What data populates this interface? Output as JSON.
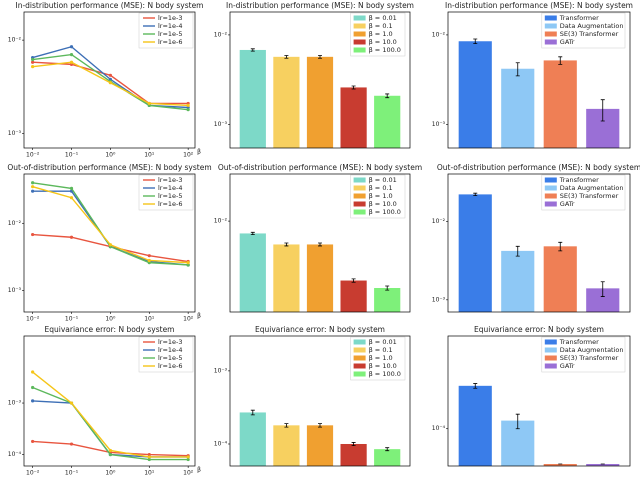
{
  "chart_data": [
    {
      "type": "line",
      "title": "In-distribution performance (MSE): N body system",
      "xlabel": "β",
      "log_x": true,
      "log_y": true,
      "legend": "upper right",
      "x": [
        0.01,
        0.1,
        1,
        10,
        100
      ],
      "xlim": [
        0.006,
        150
      ],
      "xticks": [
        {
          "value": 0.01,
          "label": "10⁻²"
        },
        {
          "value": 0.1,
          "label": "10⁻¹"
        },
        {
          "value": 1,
          "label": "10⁰"
        },
        {
          "value": 10,
          "label": "10¹"
        },
        {
          "value": 100,
          "label": "10²"
        }
      ],
      "ylim": [
        0.0007,
        0.02
      ],
      "yticks": [
        {
          "value": 0.01,
          "label": "10⁻²"
        },
        {
          "value": 0.001,
          "label": "10⁻³"
        }
      ],
      "series": [
        {
          "name": "lr=1e-3",
          "color": "#e8553f",
          "values": [
            0.0058,
            0.0055,
            0.0042,
            0.0021,
            0.0021
          ]
        },
        {
          "name": "lr=1e-4",
          "color": "#3d6fb6",
          "values": [
            0.0065,
            0.0085,
            0.0038,
            0.002,
            0.0019
          ]
        },
        {
          "name": "lr=1e-5",
          "color": "#5cb85c",
          "values": [
            0.0062,
            0.007,
            0.0036,
            0.002,
            0.0018
          ]
        },
        {
          "name": "lr=1e-6",
          "color": "#f5c518",
          "values": [
            0.0052,
            0.0058,
            0.0035,
            0.0021,
            0.002
          ]
        }
      ]
    },
    {
      "type": "bar",
      "title": "In-distribution performance (MSE): N body system",
      "log_y": true,
      "legend": "upper right",
      "categories": [
        "β = 0.01",
        "β = 0.1",
        "β = 1.0",
        "β = 10.0",
        "β = 100.0"
      ],
      "colors": [
        "#7dd9c8",
        "#f7d060",
        "#f0a030",
        "#c83c30",
        "#7ef07a"
      ],
      "values": [
        0.0068,
        0.0057,
        0.0057,
        0.0026,
        0.0021
      ],
      "errors": [
        0.0002,
        0.0002,
        0.0002,
        0.0001,
        0.0001
      ],
      "ylim": [
        0.00055,
        0.018
      ],
      "yticks": [
        {
          "value": 0.01,
          "label": "10⁻²"
        },
        {
          "value": 0.001,
          "label": "10⁻³"
        }
      ]
    },
    {
      "type": "bar",
      "title": "In-distribution performance (MSE): N body system",
      "log_y": true,
      "legend": "upper right",
      "categories": [
        "Transformer",
        "Data Augmentation",
        "SE(3) Transformer",
        "GATr"
      ],
      "colors": [
        "#3a7de8",
        "#8ec8f5",
        "#ef7f55",
        "#9a6fd6"
      ],
      "values": [
        0.0085,
        0.0042,
        0.0052,
        0.0015
      ],
      "errors": [
        0.0005,
        0.0007,
        0.0005,
        0.0004
      ],
      "ylim": [
        0.00055,
        0.018
      ],
      "yticks": [
        {
          "value": 0.01,
          "label": "10⁻²"
        },
        {
          "value": 0.001,
          "label": "10⁻³"
        }
      ]
    },
    {
      "type": "line",
      "title": "Out-of-distribution performance (MSE): N body system",
      "xlabel": "β",
      "log_x": true,
      "log_y": true,
      "legend": "upper right",
      "x": [
        0.01,
        0.1,
        1,
        10,
        100
      ],
      "xlim": [
        0.006,
        150
      ],
      "xticks": [
        {
          "value": 0.01,
          "label": "10⁻²"
        },
        {
          "value": 0.1,
          "label": "10⁻¹"
        },
        {
          "value": 1,
          "label": "10⁰"
        },
        {
          "value": 10,
          "label": "10¹"
        },
        {
          "value": 100,
          "label": "10²"
        }
      ],
      "ylim": [
        0.00048,
        0.054
      ],
      "yticks": [
        {
          "value": 0.01,
          "label": "10⁻²"
        },
        {
          "value": 0.001,
          "label": "10⁻³"
        }
      ],
      "series": [
        {
          "name": "lr=1e-3",
          "color": "#e8553f",
          "values": [
            0.0068,
            0.0062,
            0.0045,
            0.0033,
            0.0027
          ]
        },
        {
          "name": "lr=1e-4",
          "color": "#3d6fb6",
          "values": [
            0.03,
            0.03,
            0.0045,
            0.0027,
            0.0024
          ]
        },
        {
          "name": "lr=1e-5",
          "color": "#5cb85c",
          "values": [
            0.04,
            0.033,
            0.0045,
            0.0026,
            0.0024
          ]
        },
        {
          "name": "lr=1e-6",
          "color": "#f5c518",
          "values": [
            0.035,
            0.024,
            0.0048,
            0.0028,
            0.0026
          ]
        }
      ]
    },
    {
      "type": "bar",
      "title": "Out-of-distribution performance (MSE): N body system",
      "log_y": true,
      "legend": "upper right",
      "categories": [
        "β = 0.01",
        "β = 0.1",
        "β = 1.0",
        "β = 10.0",
        "β = 100.0"
      ],
      "colors": [
        "#7dd9c8",
        "#f7d060",
        "#f0a030",
        "#c83c30",
        "#7ef07a"
      ],
      "values": [
        0.0075,
        0.0058,
        0.0058,
        0.0025,
        0.0021
      ],
      "errors": [
        0.0002,
        0.0002,
        0.0002,
        0.0001,
        0.0001
      ],
      "ylim": [
        0.0012,
        0.03
      ],
      "yticks": [
        {
          "value": 0.01,
          "label": "10⁻²"
        }
      ]
    },
    {
      "type": "bar",
      "title": "Out-of-distribution performance (MSE): N body system",
      "log_y": true,
      "legend": "upper right",
      "categories": [
        "Transformer",
        "Data Augmentation",
        "SE(3) Transformer",
        "GATr"
      ],
      "colors": [
        "#3a7de8",
        "#8ec8f5",
        "#ef7f55",
        "#9a6fd6"
      ],
      "values": [
        0.022,
        0.0042,
        0.0048,
        0.0014
      ],
      "errors": [
        0.0008,
        0.0006,
        0.0006,
        0.0003
      ],
      "ylim": [
        0.0007,
        0.04
      ],
      "yticks": [
        {
          "value": 0.01,
          "label": "10⁻²"
        },
        {
          "value": 0.001,
          "label": "10⁻³"
        }
      ]
    },
    {
      "type": "line",
      "title": "Equivariance error: N body system",
      "xlabel": "β",
      "log_x": true,
      "log_y": true,
      "legend": "upper right",
      "x": [
        0.01,
        0.1,
        1,
        10,
        100
      ],
      "xlim": [
        0.006,
        150
      ],
      "xticks": [
        {
          "value": 0.01,
          "label": "10⁻²"
        },
        {
          "value": 0.1,
          "label": "10⁻¹"
        },
        {
          "value": 1,
          "label": "10⁰"
        },
        {
          "value": 10,
          "label": "10¹"
        },
        {
          "value": 100,
          "label": "10²"
        }
      ],
      "ylim": [
        6e-05,
        0.02
      ],
      "yticks": [
        {
          "value": 0.001,
          "label": "10⁻³"
        },
        {
          "value": 0.0001,
          "label": "10⁻⁴"
        }
      ],
      "series": [
        {
          "name": "lr=1e-3",
          "color": "#e8553f",
          "values": [
            0.00018,
            0.00016,
            0.00011,
            0.0001,
            9.5e-05
          ]
        },
        {
          "name": "lr=1e-4",
          "color": "#3d6fb6",
          "values": [
            0.0011,
            0.001,
            0.0001,
            9e-05,
            9e-05
          ]
        },
        {
          "name": "lr=1e-5",
          "color": "#5cb85c",
          "values": [
            0.002,
            0.001,
            0.0001,
            8e-05,
            8e-05
          ]
        },
        {
          "name": "lr=1e-6",
          "color": "#f5c518",
          "values": [
            0.004,
            0.001,
            0.00012,
            9e-05,
            9e-05
          ]
        }
      ]
    },
    {
      "type": "bar",
      "title": "Equivariance error: N body system",
      "log_y": true,
      "legend": "upper right",
      "categories": [
        "β = 0.01",
        "β = 0.1",
        "β = 1.0",
        "β = 10.0",
        "β = 100.0"
      ],
      "colors": [
        "#7dd9c8",
        "#f7d060",
        "#f0a030",
        "#c83c30",
        "#7ef07a"
      ],
      "values": [
        0.00027,
        0.00018,
        0.00018,
        0.0001,
        8.5e-05
      ],
      "errors": [
        2e-05,
        1e-05,
        1e-05,
        5e-06,
        4e-06
      ],
      "ylim": [
        5e-05,
        0.003
      ],
      "yticks": [
        {
          "value": 0.001,
          "label": "10⁻³"
        },
        {
          "value": 0.0001,
          "label": "10⁻⁴"
        }
      ]
    },
    {
      "type": "bar",
      "title": "Equivariance error: N body system",
      "log_y": true,
      "legend": "upper right",
      "categories": [
        "Transformer",
        "Data Augmentation",
        "SE(3) Transformer",
        "GATr"
      ],
      "colors": [
        "#3a7de8",
        "#8ec8f5",
        "#ef7f55",
        "#9a6fd6"
      ],
      "values": [
        0.0004,
        0.00013,
        3.2e-05,
        3.2e-05
      ],
      "errors": [
        3e-05,
        3e-05,
        0,
        0
      ],
      "ylim": [
        3e-05,
        0.002
      ],
      "yticks": [
        {
          "value": 0.0001,
          "label": "10⁻⁴"
        }
      ]
    }
  ]
}
